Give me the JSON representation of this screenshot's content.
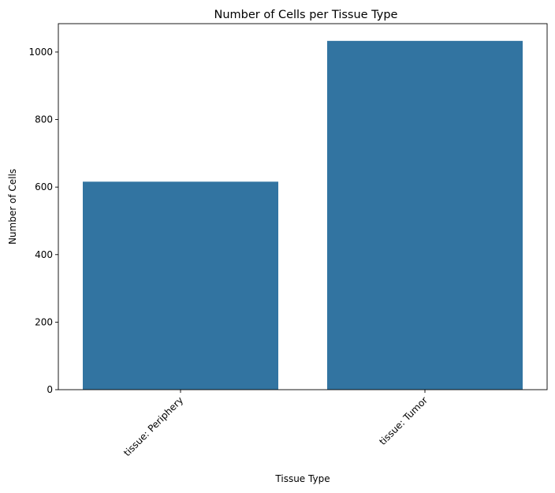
{
  "chart_data": {
    "type": "bar",
    "title": "Number of Cells per Tissue Type",
    "xlabel": "Tissue Type",
    "ylabel": "Number of Cells",
    "categories": [
      "tissue: Periphery",
      "tissue: Tumor"
    ],
    "values": [
      616,
      1033
    ],
    "ylim": [
      0,
      1084
    ],
    "yticks": [
      0,
      200,
      400,
      600,
      800,
      1000
    ],
    "xtick_rotation_deg": 45,
    "grid": false,
    "legend": "none",
    "bar_color": "#3274a1"
  }
}
